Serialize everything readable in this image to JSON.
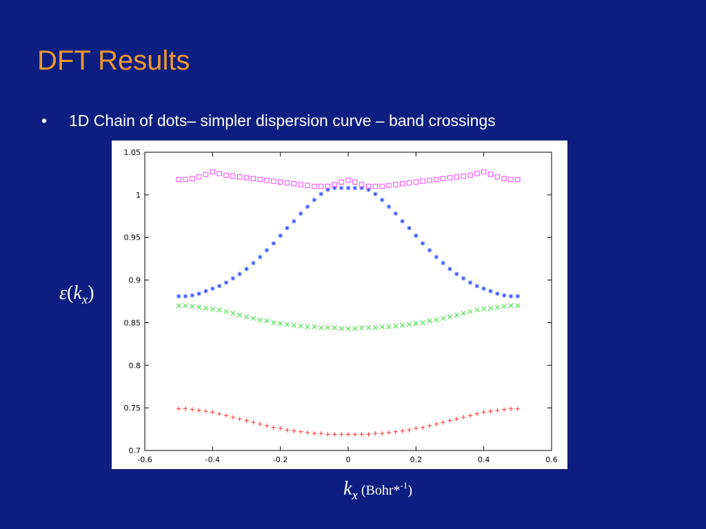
{
  "slide": {
    "title": "DFT Results",
    "bullet_marker": "•",
    "bullet_text": "1D Chain of dots– simpler dispersion curve – band crossings"
  },
  "axis_labels": {
    "y_symbol": "ε",
    "y_open": "(",
    "y_var": "k",
    "y_sub": "x",
    "y_close": ")",
    "x_var": "k",
    "x_sub": "x",
    "x_unit_open": " (Bohr*",
    "x_unit_sup": "-1",
    "x_unit_close": ")"
  },
  "chart_data": {
    "type": "scatter",
    "xlim": [
      -0.6,
      0.6
    ],
    "ylim": [
      0.7,
      1.05
    ],
    "x_ticks": [
      "-0.6",
      "-0.4",
      "-0.2",
      "0",
      "0.2",
      "0.4",
      "0.6"
    ],
    "y_ticks": [
      "0.7",
      "0.75",
      "0.8",
      "0.85",
      "0.9",
      "0.95",
      "1",
      "1.05"
    ],
    "x": [
      -0.5,
      -0.48,
      -0.46,
      -0.44,
      -0.42,
      -0.4,
      -0.38,
      -0.36,
      -0.34,
      -0.32,
      -0.3,
      -0.28,
      -0.26,
      -0.24,
      -0.22,
      -0.2,
      -0.18,
      -0.16,
      -0.14,
      -0.12,
      -0.1,
      -0.08,
      -0.06,
      -0.04,
      -0.02,
      0,
      0.02,
      0.04,
      0.06,
      0.08,
      0.1,
      0.12,
      0.14,
      0.16,
      0.18,
      0.2,
      0.22,
      0.24,
      0.26,
      0.28,
      0.3,
      0.32,
      0.34,
      0.36,
      0.38,
      0.4,
      0.42,
      0.44,
      0.46,
      0.48,
      0.5
    ],
    "series": [
      {
        "marker": "plus",
        "color": "#ff3030",
        "values": [
          0.749,
          0.749,
          0.748,
          0.747,
          0.746,
          0.745,
          0.743,
          0.741,
          0.739,
          0.737,
          0.735,
          0.733,
          0.731,
          0.729,
          0.727,
          0.726,
          0.724,
          0.723,
          0.722,
          0.721,
          0.72,
          0.72,
          0.719,
          0.719,
          0.719,
          0.719,
          0.719,
          0.719,
          0.719,
          0.72,
          0.72,
          0.721,
          0.722,
          0.723,
          0.724,
          0.726,
          0.727,
          0.729,
          0.731,
          0.733,
          0.735,
          0.737,
          0.739,
          0.741,
          0.743,
          0.745,
          0.746,
          0.747,
          0.748,
          0.749,
          0.749
        ]
      },
      {
        "marker": "cross",
        "color": "#30e030",
        "values": [
          0.87,
          0.87,
          0.869,
          0.868,
          0.867,
          0.866,
          0.865,
          0.863,
          0.861,
          0.859,
          0.857,
          0.855,
          0.853,
          0.852,
          0.85,
          0.849,
          0.848,
          0.847,
          0.846,
          0.845,
          0.845,
          0.844,
          0.844,
          0.844,
          0.843,
          0.843,
          0.843,
          0.844,
          0.844,
          0.844,
          0.845,
          0.845,
          0.846,
          0.847,
          0.848,
          0.849,
          0.85,
          0.852,
          0.853,
          0.855,
          0.857,
          0.859,
          0.861,
          0.863,
          0.865,
          0.866,
          0.867,
          0.868,
          0.869,
          0.87,
          0.87
        ]
      },
      {
        "marker": "star",
        "color": "#3050ff",
        "values": [
          0.881,
          0.881,
          0.882,
          0.884,
          0.887,
          0.89,
          0.893,
          0.897,
          0.902,
          0.907,
          0.913,
          0.92,
          0.927,
          0.935,
          0.943,
          0.952,
          0.961,
          0.969,
          0.978,
          0.986,
          0.994,
          1.001,
          1.006,
          1.008,
          1.008,
          1.008,
          1.008,
          1.008,
          1.006,
          1.001,
          0.994,
          0.986,
          0.978,
          0.969,
          0.961,
          0.952,
          0.943,
          0.935,
          0.927,
          0.92,
          0.913,
          0.907,
          0.902,
          0.897,
          0.893,
          0.89,
          0.887,
          0.884,
          0.882,
          0.881,
          0.881
        ]
      },
      {
        "marker": "square",
        "color": "#ff40ff",
        "values": [
          1.018,
          1.018,
          1.019,
          1.021,
          1.024,
          1.027,
          1.025,
          1.023,
          1.022,
          1.021,
          1.02,
          1.019,
          1.018,
          1.017,
          1.016,
          1.015,
          1.014,
          1.013,
          1.012,
          1.011,
          1.01,
          1.01,
          1.01,
          1.012,
          1.015,
          1.017,
          1.015,
          1.012,
          1.01,
          1.01,
          1.01,
          1.011,
          1.012,
          1.013,
          1.014,
          1.015,
          1.016,
          1.017,
          1.018,
          1.019,
          1.02,
          1.021,
          1.022,
          1.023,
          1.025,
          1.027,
          1.024,
          1.021,
          1.019,
          1.018,
          1.018
        ]
      }
    ]
  }
}
